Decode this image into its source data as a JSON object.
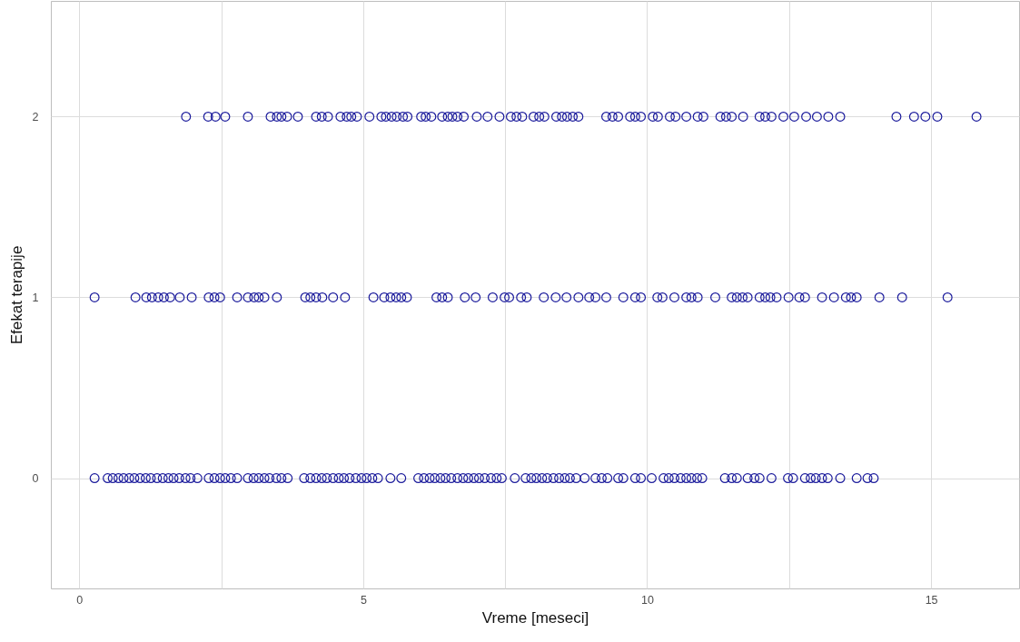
{
  "chart_data": {
    "type": "scatter",
    "xlabel": "Vreme [meseci]",
    "ylabel": "Efekat terapije",
    "color": "#1c1c9c",
    "marker": "circle",
    "grid": true,
    "xlim": [
      -0.5,
      16.55
    ],
    "ylim": [
      -0.61,
      2.64
    ],
    "xticks": [
      0,
      {
        "value": 2.5,
        "label": null
      },
      5,
      {
        "value": 7.5,
        "label": null
      },
      10,
      {
        "value": 12.5,
        "label": null
      },
      15
    ],
    "yticks": [
      0,
      1,
      2
    ],
    "x": [
      1.88,
      2.27,
      2.4,
      2.57,
      2.97,
      3.37,
      3.48,
      3.56,
      3.66,
      3.85,
      4.17,
      4.27,
      4.38,
      4.6,
      4.71,
      4.79,
      4.89,
      5.11,
      5.32,
      5.4,
      5.5,
      5.59,
      5.7,
      5.78,
      6.02,
      6.1,
      6.2,
      6.39,
      6.49,
      6.57,
      6.66,
      6.77,
      7.0,
      7.19,
      7.4,
      7.6,
      7.7,
      7.8,
      8.0,
      8.1,
      8.19,
      8.4,
      8.5,
      8.59,
      8.69,
      8.79,
      9.28,
      9.39,
      9.49,
      9.7,
      9.79,
      9.89,
      10.1,
      10.19,
      10.4,
      10.5,
      10.69,
      10.89,
      10.99,
      11.29,
      11.39,
      11.49,
      11.69,
      11.98,
      12.08,
      12.19,
      12.4,
      12.59,
      12.8,
      12.99,
      13.19,
      13.4,
      14.39,
      14.7,
      14.9,
      15.11,
      15.8,
      0.27,
      0.99,
      1.18,
      1.28,
      1.39,
      1.49,
      1.6,
      1.77,
      1.98,
      2.28,
      2.38,
      2.48,
      2.78,
      2.97,
      3.08,
      3.16,
      3.26,
      3.48,
      3.98,
      4.07,
      4.17,
      4.28,
      4.47,
      4.68,
      5.18,
      5.37,
      5.48,
      5.58,
      5.67,
      5.77,
      6.29,
      6.39,
      6.49,
      6.79,
      6.98,
      7.28,
      7.49,
      7.57,
      7.78,
      7.88,
      8.18,
      8.39,
      8.58,
      8.79,
      8.98,
      9.09,
      9.28,
      9.58,
      9.79,
      9.89,
      10.18,
      10.27,
      10.48,
      10.69,
      10.78,
      10.89,
      11.2,
      11.49,
      11.58,
      11.68,
      11.77,
      11.98,
      12.08,
      12.17,
      12.28,
      12.49,
      12.68,
      12.78,
      13.08,
      13.29,
      13.5,
      13.59,
      13.69,
      14.09,
      14.49,
      15.29,
      0.27,
      0.5,
      0.59,
      0.69,
      0.78,
      0.88,
      0.97,
      1.07,
      1.17,
      1.26,
      1.37,
      1.47,
      1.57,
      1.66,
      1.76,
      1.87,
      1.96,
      2.08,
      2.28,
      2.38,
      2.48,
      2.57,
      2.67,
      2.78,
      2.97,
      3.07,
      3.16,
      3.26,
      3.35,
      3.47,
      3.56,
      3.67,
      3.96,
      4.07,
      4.17,
      4.27,
      4.36,
      4.47,
      4.57,
      4.66,
      4.76,
      4.87,
      4.97,
      5.06,
      5.16,
      5.26,
      5.48,
      5.67,
      5.97,
      6.07,
      6.17,
      6.26,
      6.36,
      6.45,
      6.55,
      6.66,
      6.76,
      6.85,
      6.95,
      7.04,
      7.14,
      7.25,
      7.35,
      7.44,
      7.67,
      7.86,
      7.96,
      8.05,
      8.15,
      8.24,
      8.35,
      8.45,
      8.55,
      8.64,
      8.75,
      8.9,
      9.09,
      9.2,
      9.3,
      9.49,
      9.58,
      9.79,
      9.89,
      10.08,
      10.29,
      10.38,
      10.48,
      10.59,
      10.69,
      10.78,
      10.88,
      10.97,
      11.37,
      11.49,
      11.58,
      11.77,
      11.89,
      11.98,
      12.19,
      12.48,
      12.57,
      12.78,
      12.88,
      12.97,
      13.08,
      13.18,
      13.4,
      13.69,
      13.88,
      13.99
    ],
    "values": [
      2,
      2,
      2,
      2,
      2,
      2,
      2,
      2,
      2,
      2,
      2,
      2,
      2,
      2,
      2,
      2,
      2,
      2,
      2,
      2,
      2,
      2,
      2,
      2,
      2,
      2,
      2,
      2,
      2,
      2,
      2,
      2,
      2,
      2,
      2,
      2,
      2,
      2,
      2,
      2,
      2,
      2,
      2,
      2,
      2,
      2,
      2,
      2,
      2,
      2,
      2,
      2,
      2,
      2,
      2,
      2,
      2,
      2,
      2,
      2,
      2,
      2,
      2,
      2,
      2,
      2,
      2,
      2,
      2,
      2,
      2,
      2,
      2,
      2,
      2,
      2,
      2,
      1,
      1,
      1,
      1,
      1,
      1,
      1,
      1,
      1,
      1,
      1,
      1,
      1,
      1,
      1,
      1,
      1,
      1,
      1,
      1,
      1,
      1,
      1,
      1,
      1,
      1,
      1,
      1,
      1,
      1,
      1,
      1,
      1,
      1,
      1,
      1,
      1,
      1,
      1,
      1,
      1,
      1,
      1,
      1,
      1,
      1,
      1,
      1,
      1,
      1,
      1,
      1,
      1,
      1,
      1,
      1,
      1,
      1,
      1,
      1,
      1,
      1,
      1,
      1,
      1,
      1,
      1,
      1,
      1,
      1,
      1,
      1,
      1,
      1,
      1,
      1,
      0,
      0,
      0,
      0,
      0,
      0,
      0,
      0,
      0,
      0,
      0,
      0,
      0,
      0,
      0,
      0,
      0,
      0,
      0,
      0,
      0,
      0,
      0,
      0,
      0,
      0,
      0,
      0,
      0,
      0,
      0,
      0,
      0,
      0,
      0,
      0,
      0,
      0,
      0,
      0,
      0,
      0,
      0,
      0,
      0,
      0,
      0,
      0,
      0,
      0,
      0,
      0,
      0,
      0,
      0,
      0,
      0,
      0,
      0,
      0,
      0,
      0,
      0,
      0,
      0,
      0,
      0,
      0,
      0,
      0,
      0,
      0,
      0,
      0,
      0,
      0,
      0,
      0,
      0,
      0,
      0,
      0,
      0,
      0,
      0,
      0,
      0,
      0,
      0,
      0,
      0,
      0,
      0,
      0,
      0,
      0,
      0,
      0,
      0,
      0,
      0,
      0,
      0,
      0,
      0,
      0,
      0,
      0,
      0,
      0
    ]
  }
}
